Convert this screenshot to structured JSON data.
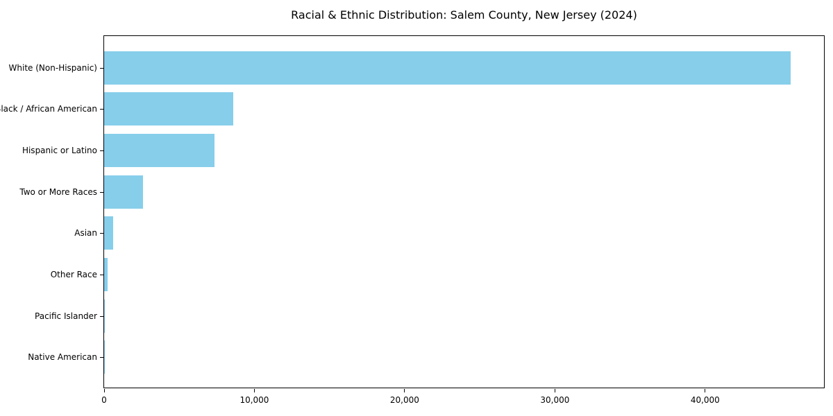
{
  "title": "Racial & Ethnic Distribution: Salem County, New Jersey (2024)",
  "colors": {
    "bar": "#87CEEB",
    "axis": "#000000",
    "background": "#ffffff",
    "text": "#000000"
  },
  "chart_data": {
    "type": "bar",
    "orientation": "horizontal",
    "title": "Racial & Ethnic Distribution: Salem County, New Jersey (2024)",
    "categories": [
      "White (Non-Hispanic)",
      "Black / African American",
      "Hispanic or Latino",
      "Two or More Races",
      "Asian",
      "Other Race",
      "Pacific Islander",
      "Native American"
    ],
    "values": [
      45700,
      8600,
      7350,
      2590,
      620,
      230,
      50,
      20
    ],
    "xlabel": "",
    "ylabel": "",
    "xlim": [
      0,
      48000
    ],
    "xticks": [
      0,
      10000,
      20000,
      30000,
      40000
    ],
    "xtick_labels": [
      "0",
      "10,000",
      "20,000",
      "30,000",
      "40,000"
    ],
    "bar_color": "#87CEEB",
    "grid": false,
    "legend": false
  }
}
